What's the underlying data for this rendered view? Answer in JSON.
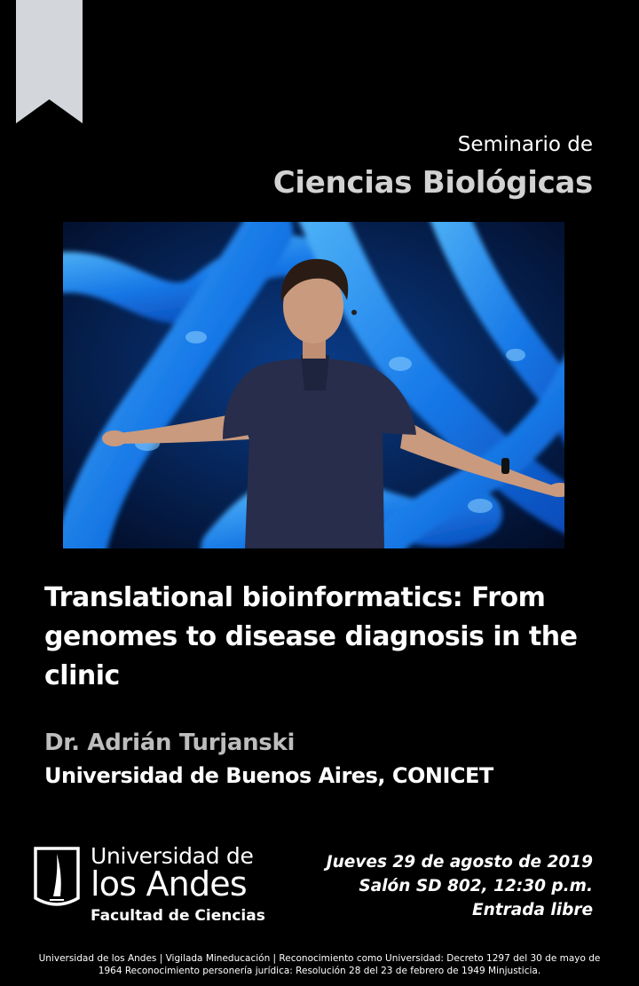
{
  "header": {
    "series_prefix": "Seminario de",
    "series_title": "Ciencias Biológicas"
  },
  "talk": {
    "title": "Translational bioinformatics: From genomes to disease diagnosis in the clinic"
  },
  "speaker": {
    "name": "Dr. Adrián Turjanski",
    "affiliation": "Universidad de Buenos Aires, CONICET"
  },
  "logo": {
    "line1": "Universidad de",
    "line2": "los Andes",
    "line3": "Facultad de Ciencias"
  },
  "event": {
    "date": "Jueves 29 de agosto de 2019",
    "venue": "Salón SD 802, 12:30 p.m.",
    "admission": "Entrada libre"
  },
  "footer": {
    "line1": "Universidad de los Andes | Vigilada Mineducación | Reconocimiento como Universidad: Decreto 1297 del 30 de mayo de",
    "line2": "1964 Reconocimiento personería jurídica: Resolución 28 del 23 de febrero de 1949 Minjusticia."
  },
  "colors": {
    "background": "#000000",
    "bookmark": "#d3d7db",
    "photo_blue": "#1e8fff"
  }
}
